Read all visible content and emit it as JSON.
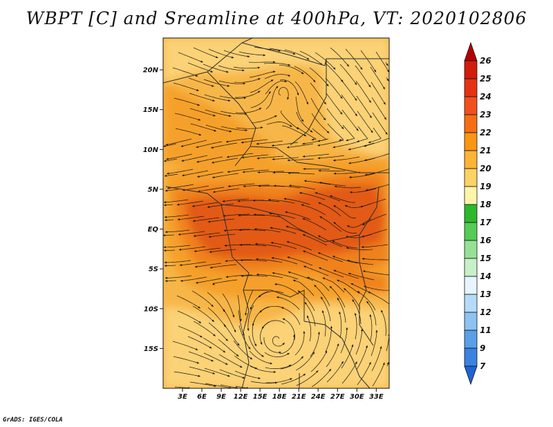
{
  "title": "WBPT [C] and Sreamline at 400hPa, VT: 2020102806",
  "credit": "GrADS: IGES/COLA",
  "map": {
    "lon_range_deg": [
      0,
      35
    ],
    "lat_range_deg": [
      -20,
      24
    ],
    "lat_ticks": [
      {
        "label": "20N",
        "value": 20
      },
      {
        "label": "15N",
        "value": 15
      },
      {
        "label": "10N",
        "value": 10
      },
      {
        "label": "5N",
        "value": 5
      },
      {
        "label": "EQ",
        "value": 0
      },
      {
        "label": "5S",
        "value": -5
      },
      {
        "label": "10S",
        "value": -10
      },
      {
        "label": "15S",
        "value": -15
      }
    ],
    "lon_ticks": [
      {
        "label": "3E",
        "value": 3
      },
      {
        "label": "6E",
        "value": 6
      },
      {
        "label": "9E",
        "value": 9
      },
      {
        "label": "12E",
        "value": 12
      },
      {
        "label": "15E",
        "value": 15
      },
      {
        "label": "18E",
        "value": 18
      },
      {
        "label": "21E",
        "value": 21
      },
      {
        "label": "24E",
        "value": 24
      },
      {
        "label": "27E",
        "value": 27
      },
      {
        "label": "30E",
        "value": 30
      },
      {
        "label": "33E",
        "value": 33
      }
    ]
  },
  "colorbar": {
    "levels": [
      "26",
      "25",
      "24",
      "23",
      "22",
      "21",
      "20",
      "19",
      "18",
      "17",
      "16",
      "15",
      "14",
      "13",
      "12",
      "11",
      "9",
      "7"
    ],
    "colors": [
      "#b30000",
      "#d21c0c",
      "#e63214",
      "#f0501e",
      "#f66e14",
      "#fa9614",
      "#fcb437",
      "#fcd264",
      "#fff5aa",
      "#2db82d",
      "#55cc55",
      "#96e196",
      "#c8f0c8",
      "#e6f5ff",
      "#b4dcfa",
      "#8cc3f0",
      "#5aa0e6",
      "#3c82e1",
      "#1e64d2"
    ]
  },
  "field_colors": {
    "core": "#e25a16",
    "warm": "#f0821e",
    "mid": "#f5a02c",
    "base": "#f7b648",
    "cool": "#fbd276",
    "streamline": "#141414",
    "border": "#2a2a2a"
  }
}
